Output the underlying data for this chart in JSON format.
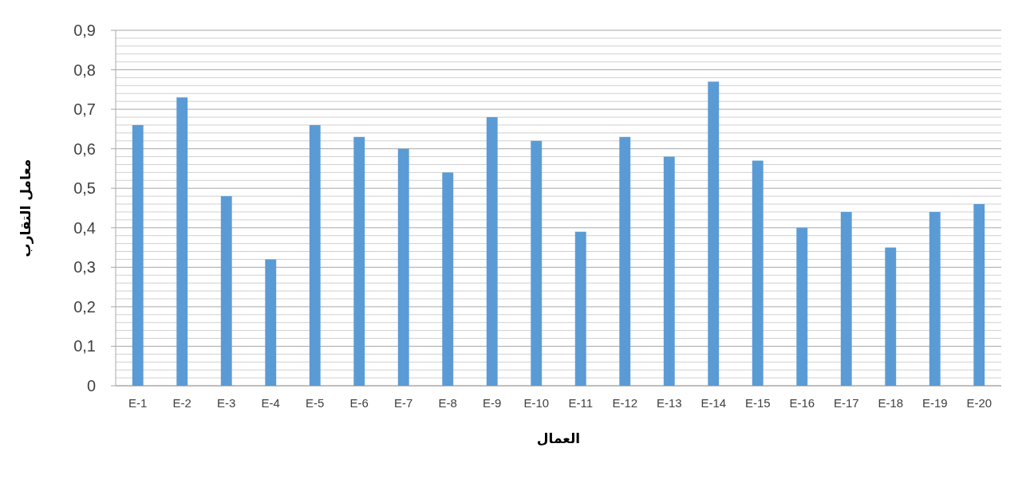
{
  "chart_data": {
    "type": "bar",
    "xlabel": "العمال",
    "ylabel": "معامل التقارب",
    "categories": [
      "E-1",
      "E-2",
      "E-3",
      "E-4",
      "E-5",
      "E-6",
      "E-7",
      "E-8",
      "E-9",
      "E-10",
      "E-11",
      "E-12",
      "E-13",
      "E-14",
      "E-15",
      "E-16",
      "E-17",
      "E-18",
      "E-19",
      "E-20"
    ],
    "values": [
      0.66,
      0.73,
      0.48,
      0.32,
      0.66,
      0.63,
      0.6,
      0.54,
      0.68,
      0.62,
      0.39,
      0.63,
      0.58,
      0.77,
      0.57,
      0.4,
      0.44,
      0.35,
      0.44,
      0.46
    ],
    "color": "#5b9bd5",
    "ylim": [
      0,
      0.9
    ],
    "yticks": [
      {
        "value": 0,
        "label": "0"
      },
      {
        "value": 0.02,
        "label": null
      },
      {
        "value": 0.04,
        "label": null
      },
      {
        "value": 0.06,
        "label": null
      },
      {
        "value": 0.08,
        "label": null
      },
      {
        "value": 0.1,
        "label": "0,1"
      },
      {
        "value": 0.12,
        "label": null
      },
      {
        "value": 0.14,
        "label": null
      },
      {
        "value": 0.16,
        "label": null
      },
      {
        "value": 0.18,
        "label": null
      },
      {
        "value": 0.2,
        "label": "0,2"
      },
      {
        "value": 0.22,
        "label": null
      },
      {
        "value": 0.24,
        "label": null
      },
      {
        "value": 0.26,
        "label": null
      },
      {
        "value": 0.28,
        "label": null
      },
      {
        "value": 0.3,
        "label": "0,3"
      },
      {
        "value": 0.32,
        "label": null
      },
      {
        "value": 0.34,
        "label": null
      },
      {
        "value": 0.36,
        "label": null
      },
      {
        "value": 0.38,
        "label": null
      },
      {
        "value": 0.4,
        "label": "0,4"
      },
      {
        "value": 0.42,
        "label": null
      },
      {
        "value": 0.44,
        "label": null
      },
      {
        "value": 0.46,
        "label": null
      },
      {
        "value": 0.48,
        "label": null
      },
      {
        "value": 0.5,
        "label": "0,5"
      },
      {
        "value": 0.52,
        "label": null
      },
      {
        "value": 0.54,
        "label": null
      },
      {
        "value": 0.56,
        "label": null
      },
      {
        "value": 0.58,
        "label": null
      },
      {
        "value": 0.6,
        "label": "0,6"
      },
      {
        "value": 0.62,
        "label": null
      },
      {
        "value": 0.64,
        "label": null
      },
      {
        "value": 0.66,
        "label": null
      },
      {
        "value": 0.68,
        "label": null
      },
      {
        "value": 0.7,
        "label": "0,7"
      },
      {
        "value": 0.72,
        "label": null
      },
      {
        "value": 0.74,
        "label": null
      },
      {
        "value": 0.76,
        "label": null
      },
      {
        "value": 0.78,
        "label": null
      },
      {
        "value": 0.8,
        "label": "0,8"
      },
      {
        "value": 0.82,
        "label": null
      },
      {
        "value": 0.84,
        "label": null
      },
      {
        "value": 0.86,
        "label": null
      },
      {
        "value": 0.88,
        "label": null
      },
      {
        "value": 0.9,
        "label": "0,9"
      }
    ],
    "grid": "y"
  }
}
